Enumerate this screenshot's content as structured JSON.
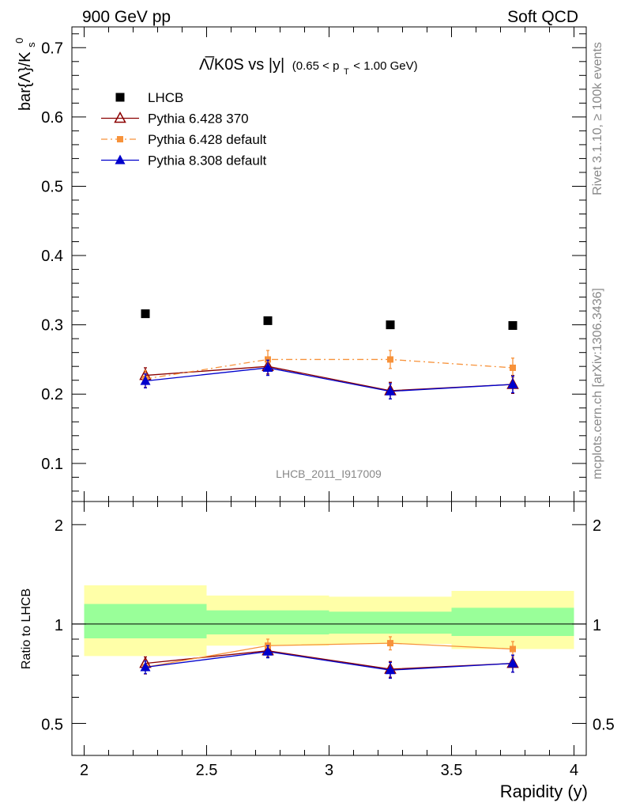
{
  "header": {
    "left": "900 GeV pp",
    "right": "Soft QCD"
  },
  "side_text": {
    "rivet": "Rivet 3.1.10, ≥ 100k events",
    "mcplots": "mcplots.cern.ch [arXiv:1306.3436]"
  },
  "chart_data": [
    {
      "type": "scatter",
      "panel": "main",
      "title": "Λ̅/K0S vs |y|",
      "title_suffix": "(0.65 < p_T < 1.00 GeV)",
      "title_suffix_parts": [
        "(0.65 < p",
        "T",
        " < 1.00 GeV)"
      ],
      "ylabel": "bar{Λ}/K",
      "ylabel_sub": "s",
      "ylabel_sup": "0",
      "watermark": "LHCB_2011_I917009",
      "xlim": [
        1.95,
        4.05
      ],
      "ylim": [
        0.045,
        0.73
      ],
      "yticks": [
        0.1,
        0.2,
        0.3,
        0.4,
        0.5,
        0.6,
        0.7
      ],
      "ytick_labels": [
        "0.1",
        "0.2",
        "0.3",
        "0.4",
        "0.5",
        "0.6",
        "0.7"
      ],
      "legend_position": "top-left",
      "x": [
        2.25,
        2.75,
        3.25,
        3.75
      ],
      "series": [
        {
          "name": "LHCB",
          "color": "#000000",
          "marker": "square",
          "values": [
            0.316,
            0.306,
            0.3,
            0.299
          ],
          "errors": [
            0.002,
            0.002,
            0.002,
            0.002
          ]
        },
        {
          "name": "Pythia 6.428 370",
          "color": "#8b0000",
          "marker": "open-triangle",
          "values": [
            0.227,
            0.24,
            0.205,
            0.214
          ],
          "errors": [
            0.011,
            0.011,
            0.012,
            0.013
          ]
        },
        {
          "name": "Pythia 6.428 default",
          "color": "#f7923a",
          "marker": "small-square",
          "dash": "dashdot",
          "values": [
            0.222,
            0.25,
            0.25,
            0.238
          ],
          "errors": [
            0.012,
            0.013,
            0.013,
            0.014
          ]
        },
        {
          "name": "Pythia 8.308 default",
          "color": "#0000cc",
          "marker": "filled-triangle",
          "values": [
            0.219,
            0.238,
            0.204,
            0.214
          ],
          "errors": [
            0.01,
            0.011,
            0.011,
            0.012
          ]
        }
      ]
    },
    {
      "type": "scatter",
      "panel": "ratio",
      "xlabel": "Rapidity (y)",
      "ylabel": "Ratio to LHCB",
      "xlim": [
        1.95,
        4.05
      ],
      "ylim": [
        0.4,
        2.35
      ],
      "log_y": true,
      "xticks": [
        2,
        2.5,
        3,
        3.5,
        4
      ],
      "xtick_labels": [
        "2",
        "2.5",
        "3",
        "3.5",
        "4"
      ],
      "yticks": [
        0.5,
        1,
        2
      ],
      "ytick_labels": [
        "0.5",
        "1",
        "2"
      ],
      "reference_line": 1,
      "bands": [
        {
          "x": [
            2.0,
            2.5
          ],
          "green": [
            0.905,
            1.15
          ],
          "yellow": [
            0.8,
            1.31
          ]
        },
        {
          "x": [
            2.5,
            3.0
          ],
          "green": [
            0.93,
            1.1
          ],
          "yellow": [
            0.86,
            1.22
          ]
        },
        {
          "x": [
            3.0,
            3.5
          ],
          "green": [
            0.935,
            1.09
          ],
          "yellow": [
            0.87,
            1.21
          ]
        },
        {
          "x": [
            3.5,
            4.0
          ],
          "green": [
            0.92,
            1.12
          ],
          "yellow": [
            0.84,
            1.26
          ]
        }
      ],
      "x": [
        2.25,
        2.75,
        3.25,
        3.75
      ],
      "series": [
        {
          "name": "Pythia 6.428 370",
          "color": "#8b0000",
          "marker": "open-triangle",
          "values": [
            0.76,
            0.83,
            0.73,
            0.76
          ],
          "errors": [
            0.035,
            0.035,
            0.04,
            0.045
          ]
        },
        {
          "name": "Pythia 6.428 default",
          "color": "#f7923a",
          "marker": "small-square",
          "values": [
            0.74,
            0.86,
            0.875,
            0.84
          ],
          "errors": [
            0.035,
            0.04,
            0.04,
            0.045
          ]
        },
        {
          "name": "Pythia 8.308 default",
          "color": "#0000cc",
          "marker": "filled-triangle",
          "values": [
            0.74,
            0.825,
            0.725,
            0.76
          ],
          "errors": [
            0.033,
            0.035,
            0.04,
            0.045
          ]
        }
      ]
    }
  ]
}
